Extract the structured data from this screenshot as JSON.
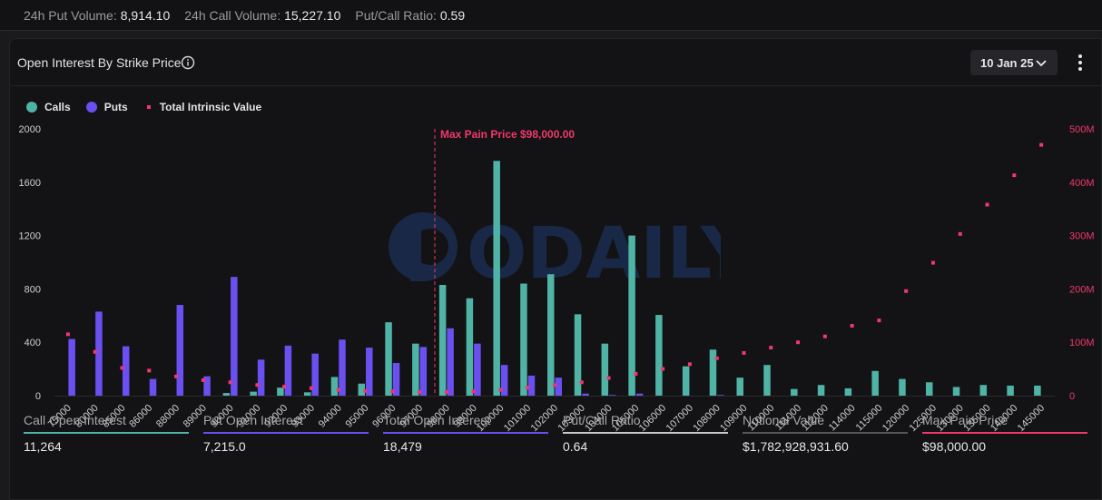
{
  "top_stats": [
    {
      "label": "24h Put Volume:",
      "value": "8,914.10"
    },
    {
      "label": "24h Call Volume:",
      "value": "15,227.10"
    },
    {
      "label": "Put/Call Ratio:",
      "value": "0.59"
    }
  ],
  "panel": {
    "title": "Open Interest By Strike Price",
    "date_select": "10 Jan 25",
    "info_icon": "info-circle-icon",
    "more_icon": "more-vertical-icon"
  },
  "legend": [
    {
      "label": "Calls",
      "color": "#4fb3a5"
    },
    {
      "label": "Puts",
      "color": "#6b4ff0"
    },
    {
      "label": "Total Intrinsic Value",
      "color": "#f0386b"
    }
  ],
  "watermark": "ODAILY",
  "chart_data": {
    "type": "bar",
    "categories": [
      "75000",
      "80000",
      "85000",
      "86000",
      "88000",
      "89000",
      "90000",
      "91000",
      "92000",
      "93000",
      "94000",
      "95000",
      "96000",
      "97000",
      "98000",
      "99000",
      "100000",
      "101000",
      "102000",
      "103000",
      "104000",
      "105000",
      "106000",
      "107000",
      "108000",
      "109000",
      "110000",
      "111000",
      "112000",
      "114000",
      "115000",
      "120000",
      "125000",
      "130000",
      "135000",
      "140000",
      "145000"
    ],
    "series": [
      {
        "name": "Calls",
        "color": "#4fb3a5",
        "axis": "left",
        "values": [
          0,
          0,
          0,
          0,
          0,
          0,
          20,
          30,
          60,
          25,
          140,
          90,
          550,
          390,
          830,
          730,
          1760,
          840,
          910,
          610,
          390,
          1200,
          605,
          220,
          345,
          135,
          230,
          50,
          80,
          55,
          185,
          125,
          100,
          65,
          80,
          75,
          75
        ]
      },
      {
        "name": "Puts",
        "color": "#6b4ff0",
        "axis": "left",
        "values": [
          425,
          630,
          370,
          125,
          680,
          145,
          890,
          270,
          375,
          315,
          420,
          360,
          245,
          365,
          505,
          390,
          230,
          150,
          135,
          15,
          5,
          15,
          0,
          0,
          5,
          0,
          0,
          0,
          0,
          0,
          0,
          0,
          0,
          0,
          0,
          0,
          0
        ]
      },
      {
        "name": "Total Intrinsic Value",
        "color": "#f0386b",
        "axis": "right",
        "type": "scatter",
        "values": [
          115,
          82,
          52,
          47,
          36,
          29,
          25,
          20,
          17,
          14,
          11,
          9,
          8,
          7,
          7,
          8,
          11,
          15,
          20,
          25,
          33,
          41,
          50,
          59,
          70,
          80,
          90,
          100,
          111,
          131,
          141,
          196,
          249,
          303,
          358,
          413,
          470
        ]
      }
    ],
    "y_left": {
      "min": 0,
      "max": 2000,
      "ticks": [
        "0",
        "400",
        "800",
        "1200",
        "1600",
        "2000"
      ],
      "tick_values": [
        0,
        400,
        800,
        1200,
        1600,
        2000
      ]
    },
    "y_right": {
      "min": 0,
      "max": 500,
      "unit": "M",
      "ticks": [
        "0",
        "100M",
        "200M",
        "300M",
        "400M",
        "500M"
      ],
      "tick_values": [
        0,
        100,
        200,
        300,
        400,
        500
      ]
    },
    "annotation": {
      "label": "Max Pain Price $98,000.00",
      "category": "98000",
      "color": "#f0386b"
    },
    "grid": false,
    "legend_position": "top-left"
  },
  "footer": [
    {
      "label": "Call Open Interest",
      "value": "11,264",
      "color": "#4fb3a5"
    },
    {
      "label": "Put Open Interest",
      "value": "7,215.0",
      "color": "#6b4ff0"
    },
    {
      "label": "Total Open Interest",
      "value": "18,479",
      "color": "#6b4ff0"
    },
    {
      "label": "Put/Call Ratio",
      "value": "0.64",
      "color": "#c8c8c8"
    },
    {
      "label": "Notional Value",
      "value": "$1,782,928,931.60",
      "color": "#555558"
    },
    {
      "label": "Max Pain Price",
      "value": "$98,000.00",
      "color": "#f0386b"
    }
  ]
}
